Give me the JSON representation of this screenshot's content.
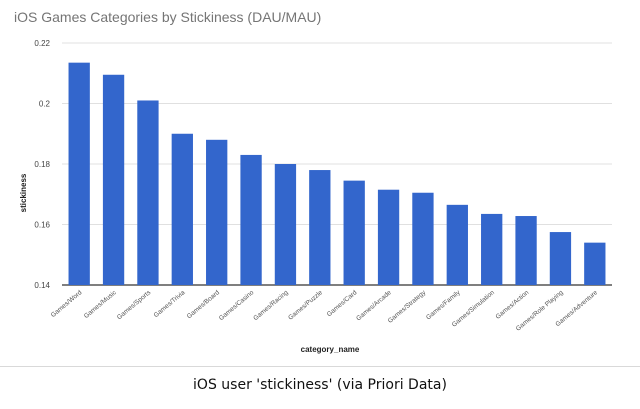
{
  "chart_data": {
    "type": "bar",
    "title": "iOS Games Categories by Stickiness (DAU/MAU)",
    "xlabel": "category_name",
    "ylabel": "stickiness",
    "categories": [
      "Games/Word",
      "Games/Music",
      "Games/Sports",
      "Games/Trivia",
      "Games/Board",
      "Games/Casino",
      "Games/Racing",
      "Games/Puzzle",
      "Games/Card",
      "Games/Arcade",
      "Games/Strategy",
      "Games/Family",
      "Games/Simulation",
      "Games/Action",
      "Games/Role Playing",
      "Games/Adventure"
    ],
    "values": [
      0.2135,
      0.2095,
      0.201,
      0.19,
      0.188,
      0.183,
      0.18,
      0.178,
      0.1745,
      0.1715,
      0.1705,
      0.1665,
      0.1635,
      0.1628,
      0.1575,
      0.154
    ],
    "ylim": [
      0.14,
      0.22
    ],
    "yticks": [
      "0.14",
      "0.16",
      "0.18",
      "0.2",
      "0.22"
    ],
    "grid": true,
    "legend": "none",
    "bar_color": "#3366cc",
    "grid_color": "#e0e0e0",
    "axis_color": "#333333"
  },
  "caption": "iOS user 'stickiness' (via Priori Data)"
}
